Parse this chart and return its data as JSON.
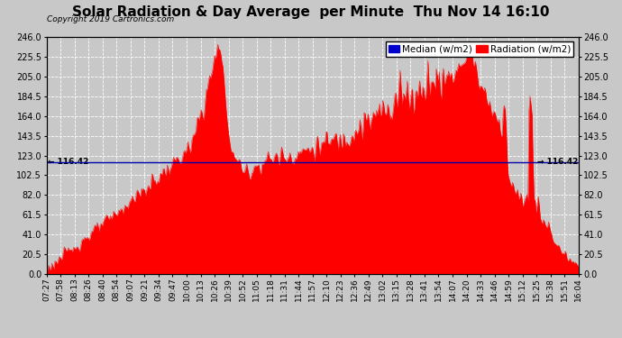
{
  "title": "Solar Radiation & Day Average  per Minute  Thu Nov 14 16:10",
  "copyright": "Copyright 2019 Cartronics.com",
  "median_label": "Median (w/m2)",
  "radiation_label": "Radiation (w/m2)",
  "median_value": 116.42,
  "y_max": 246.0,
  "y_ticks": [
    0.0,
    20.5,
    41.0,
    61.5,
    82.0,
    102.5,
    123.0,
    143.5,
    164.0,
    184.5,
    205.0,
    225.5,
    246.0
  ],
  "bg_color": "#c8c8c8",
  "plot_bg_color": "#c8c8c8",
  "fill_color": "#ff0000",
  "median_line_color": "#0000aa",
  "grid_color": "#ffffff",
  "x_labels": [
    "07:27",
    "07:58",
    "08:13",
    "08:26",
    "08:40",
    "08:54",
    "09:07",
    "09:21",
    "09:34",
    "09:47",
    "10:00",
    "10:13",
    "10:26",
    "10:39",
    "10:52",
    "11:05",
    "11:18",
    "11:31",
    "11:44",
    "11:57",
    "12:10",
    "12:23",
    "12:36",
    "12:49",
    "13:02",
    "13:15",
    "13:28",
    "13:41",
    "13:54",
    "14:07",
    "14:20",
    "14:33",
    "14:46",
    "14:59",
    "15:12",
    "15:25",
    "15:38",
    "15:51",
    "16:04"
  ],
  "title_fontsize": 11,
  "tick_fontsize": 7,
  "legend_fontsize": 7.5
}
